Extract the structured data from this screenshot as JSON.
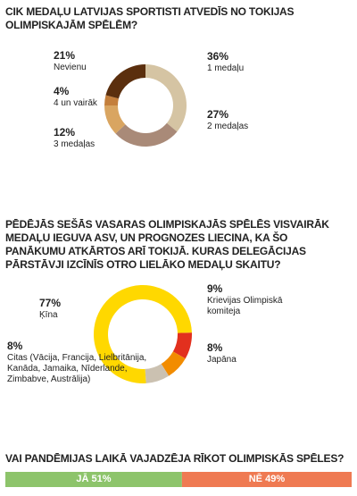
{
  "chart_data": [
    {
      "type": "pie",
      "title": "CIK MEDAĻU LATVIJAS SPORTISTI ATVEDĪS NO TOKIJAS OLIMPISKAJĀM SPĒLĒM?",
      "categories": [
        "1 medaļu",
        "2 medaļas",
        "3 medaļas",
        "4 un vairāk",
        "Nevienu"
      ],
      "values": [
        36,
        27,
        12,
        4,
        21
      ],
      "value_labels": [
        "36%",
        "27%",
        "12%",
        "4%",
        "21%"
      ],
      "colors": [
        "#d5c4a3",
        "#a98a78",
        "#d9a561",
        "#c47f3c",
        "#5b2f0e"
      ]
    },
    {
      "type": "pie",
      "title": "PĒDĒJĀS SEŠĀS VASARAS OLIMPISKAJĀS SPĒLĒS VISVAIRĀK MEDAĻU IEGUVA ASV, UN PROGNOZES LIECINA, KA ŠO PANĀKUMU ATKĀRTOS ARĪ TOKIJĀ. KURAS DELEGĀCIJAS PĀRSTĀVJI IZCĪNĪS OTRO LIELĀKO MEDAĻU SKAITU?",
      "categories": [
        "Krievijas Olimpiskā komiteja",
        "Japāna",
        "Citas (Vācija, Francija, Lielbritānija, Kanāda, Jamaika, Nīderlande, Zimbabve, Austrālija)",
        "Ķīna"
      ],
      "values": [
        9,
        8,
        8,
        77
      ],
      "value_labels": [
        "9%",
        "8%",
        "8%",
        "77%"
      ],
      "colors": [
        "#e2301e",
        "#f28c00",
        "#cbc1b1",
        "#ffd800"
      ]
    },
    {
      "type": "stacked-bar",
      "title": "VAI PANDĒMIJAS LAIKĀ VAJADZĒJA RĪKOT OLIMPISKĀS SPĒLES?",
      "categories": [
        "JĀ",
        "NĒ"
      ],
      "values": [
        51,
        49
      ],
      "value_labels": [
        "51%",
        "49%"
      ],
      "colors": [
        "#8dc46b",
        "#ef7a52"
      ]
    }
  ]
}
